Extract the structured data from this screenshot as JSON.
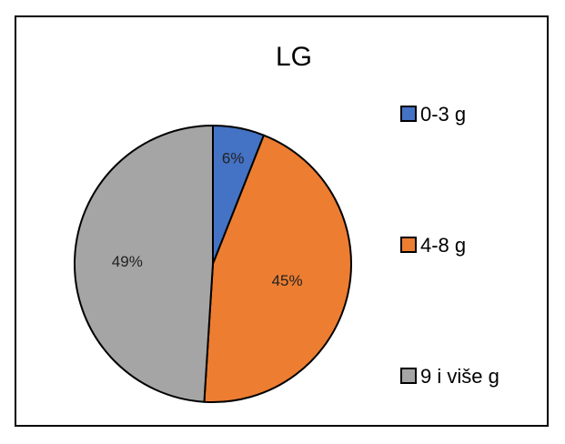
{
  "chart_data": {
    "type": "pie",
    "title": "LG",
    "categories": [
      "0-3 g",
      "4-8 g",
      "9 i više g"
    ],
    "values": [
      6,
      45,
      49
    ],
    "labels": [
      "6%",
      "45%",
      "49%"
    ],
    "colors": [
      "#4472C4",
      "#ED7D31",
      "#A5A5A5"
    ],
    "start_angle": "top",
    "direction": "clockwise",
    "legend": "right"
  }
}
